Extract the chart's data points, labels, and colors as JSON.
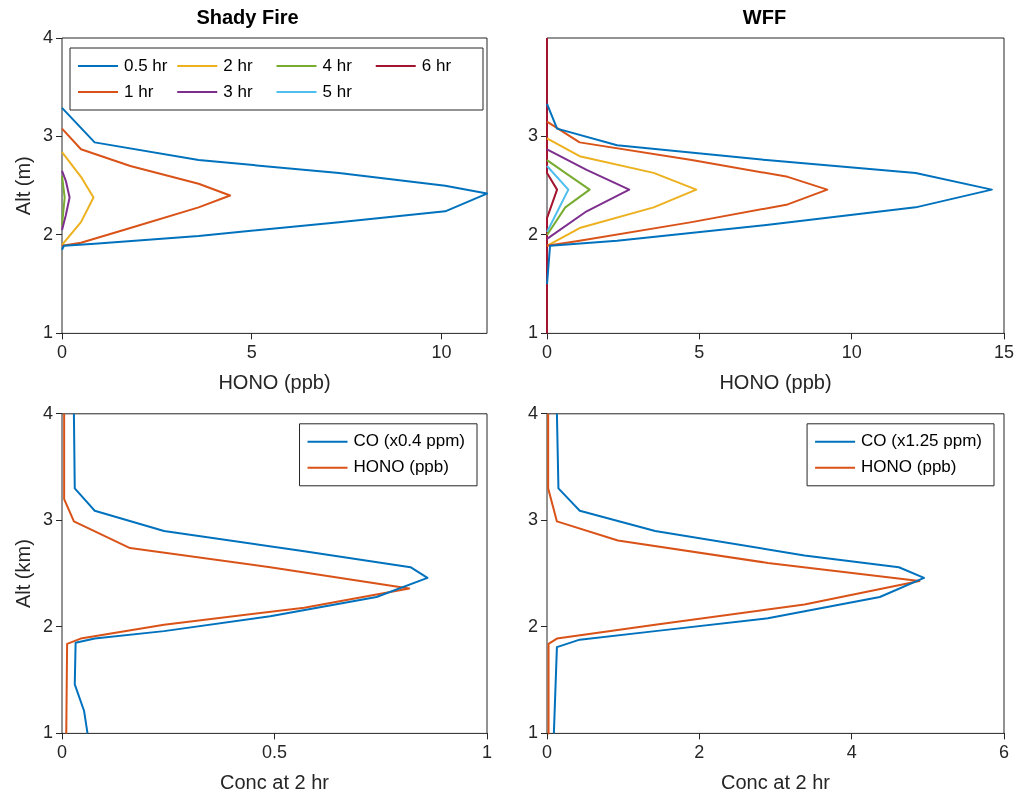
{
  "chart_data": [
    {
      "type": "line",
      "title": "Shady Fire",
      "xlabel": "HONO (ppb)",
      "ylabel": "Alt (m)",
      "xlim": [
        0,
        11.2
      ],
      "xticks": [
        0,
        5,
        10
      ],
      "ylim": [
        1,
        4
      ],
      "yticks": [
        1,
        2,
        3,
        4
      ],
      "legend": "top",
      "marker": "none",
      "line_style": "solid",
      "series": [
        {
          "name": "0.5 hr",
          "color": "#0072bd",
          "x": [
            0,
            0.05,
            0.86,
            3.6,
            7.3,
            10.1,
            11.2,
            10.1,
            7.3,
            3.6,
            0.86,
            0
          ],
          "values": [
            1.85,
            1.89,
            1.91,
            1.99,
            2.13,
            2.24,
            2.42,
            2.5,
            2.63,
            2.76,
            2.94,
            3.29
          ]
        },
        {
          "name": "1 hr",
          "color": "#d95319",
          "x": [
            0,
            0.5,
            1.8,
            3.6,
            4.43,
            3.6,
            1.8,
            0.5,
            0
          ],
          "values": [
            1.89,
            1.92,
            2.07,
            2.28,
            2.4,
            2.52,
            2.7,
            2.87,
            3.08
          ]
        },
        {
          "name": "2 hr",
          "color": "#edb120",
          "x": [
            0,
            0.5,
            0.83,
            0.5,
            0
          ],
          "values": [
            1.9,
            2.13,
            2.38,
            2.59,
            2.84
          ]
        },
        {
          "name": "3 hr",
          "color": "#7e2f8e",
          "x": [
            0,
            0.1,
            0.2,
            0.1,
            0
          ],
          "values": [
            2.05,
            2.2,
            2.38,
            2.55,
            2.65
          ]
        },
        {
          "name": "4 hr",
          "color": "#77ac30",
          "x": [
            0,
            0.07,
            0
          ],
          "values": [
            2.1,
            2.38,
            2.6
          ]
        },
        {
          "name": "5 hr",
          "color": "#4dbeee"
        },
        {
          "name": "6 hr",
          "color": "#a2142f"
        }
      ]
    },
    {
      "type": "line",
      "title": "WFF",
      "xlabel": "HONO (ppb)",
      "xlim": [
        0,
        15
      ],
      "xticks": [
        0,
        5,
        10,
        15
      ],
      "ylim": [
        1,
        4
      ],
      "yticks": [
        1,
        2,
        3
      ],
      "marker": "none",
      "line_style": "solid",
      "series": [
        {
          "color": "#0072bd",
          "x": [
            0,
            0.1,
            2.3,
            7.2,
            12.1,
            14.6,
            12.1,
            7.2,
            2.3,
            0.33,
            0
          ],
          "values": [
            1.5,
            1.89,
            1.94,
            2.1,
            2.28,
            2.46,
            2.63,
            2.76,
            2.91,
            3.08,
            3.33
          ]
        },
        {
          "color": "#d95319",
          "x": [
            0,
            1.07,
            4.75,
            7.9,
            9.2,
            7.9,
            4.75,
            1.07,
            0
          ],
          "values": [
            1.89,
            1.94,
            2.13,
            2.31,
            2.46,
            2.59,
            2.76,
            2.94,
            3.15
          ]
        },
        {
          "color": "#edb120",
          "x": [
            0,
            1.07,
            3.5,
            4.9,
            3.5,
            1.07,
            0
          ],
          "values": [
            1.89,
            2.07,
            2.28,
            2.46,
            2.63,
            2.8,
            2.98
          ]
        },
        {
          "color": "#7e2f8e",
          "x": [
            0,
            1.3,
            2.7,
            1.3,
            0
          ],
          "values": [
            1.96,
            2.24,
            2.46,
            2.66,
            2.87
          ]
        },
        {
          "color": "#77ac30",
          "x": [
            0,
            0.6,
            1.4,
            0.6,
            0
          ],
          "values": [
            2,
            2.28,
            2.46,
            2.63,
            2.76
          ]
        },
        {
          "color": "#4dbeee",
          "x": [
            0,
            0.7,
            0
          ],
          "values": [
            2.03,
            2.46,
            2.7
          ]
        },
        {
          "color": "#a2142f",
          "x": [
            0,
            0,
            0.33,
            0,
            0
          ],
          "values": [
            1,
            2.17,
            2.46,
            2.63,
            4
          ]
        }
      ]
    },
    {
      "type": "line",
      "xlabel": "Conc at 2 hr",
      "ylabel": "Alt (km)",
      "xlim": [
        0,
        1
      ],
      "xticks": [
        0,
        0.5,
        1
      ],
      "ylim": [
        1,
        4
      ],
      "yticks": [
        1,
        2,
        3,
        4
      ],
      "legend": "top right",
      "marker": "none",
      "line_style": "solid",
      "series": [
        {
          "name": "CO (x0.4 ppm)",
          "color": "#0072bd",
          "x": [
            0.06,
            0.052,
            0.03,
            0.032,
            0.077,
            0.24,
            0.49,
            0.74,
            0.86,
            0.82,
            0.57,
            0.24,
            0.077,
            0.03,
            0.028
          ],
          "values": [
            1,
            1.21,
            1.46,
            1.85,
            1.89,
            1.96,
            2.1,
            2.28,
            2.46,
            2.56,
            2.71,
            2.9,
            3.09,
            3.3,
            4
          ]
        },
        {
          "name": "HONO (ppb)",
          "color": "#d95319",
          "x": [
            0.01,
            0.012,
            0.044,
            0.24,
            0.57,
            0.817,
            0.49,
            0.16,
            0.028,
            0.005,
            0.005
          ],
          "values": [
            1,
            1.84,
            1.89,
            2.02,
            2.18,
            2.36,
            2.56,
            2.74,
            2.99,
            3.2,
            4
          ]
        }
      ]
    },
    {
      "type": "line",
      "xlabel": "Conc at 2 hr",
      "xlim": [
        0,
        6
      ],
      "xticks": [
        0,
        2,
        4,
        6
      ],
      "ylim": [
        1,
        4
      ],
      "yticks": [
        1,
        2,
        3,
        4
      ],
      "legend": "top right",
      "marker": "none",
      "line_style": "solid",
      "series": [
        {
          "name": "CO (x1.25 ppm)",
          "color": "#0072bd",
          "x": [
            0.09,
            0.13,
            0.43,
            1.42,
            2.9,
            4.37,
            4.95,
            4.62,
            3.38,
            1.42,
            0.43,
            0.15,
            0.13
          ],
          "values": [
            1,
            1.81,
            1.88,
            1.96,
            2.08,
            2.28,
            2.46,
            2.56,
            2.67,
            2.9,
            3.09,
            3.3,
            4
          ]
        },
        {
          "name": "HONO (ppb)",
          "color": "#d95319",
          "x": [
            0.015,
            0.02,
            0.13,
            1.42,
            3.38,
            4.89,
            2.9,
            0.93,
            0.13,
            0.015,
            0.015
          ],
          "values": [
            1,
            1.84,
            1.89,
            2.02,
            2.21,
            2.43,
            2.6,
            2.81,
            2.99,
            3.3,
            4
          ]
        }
      ]
    }
  ]
}
